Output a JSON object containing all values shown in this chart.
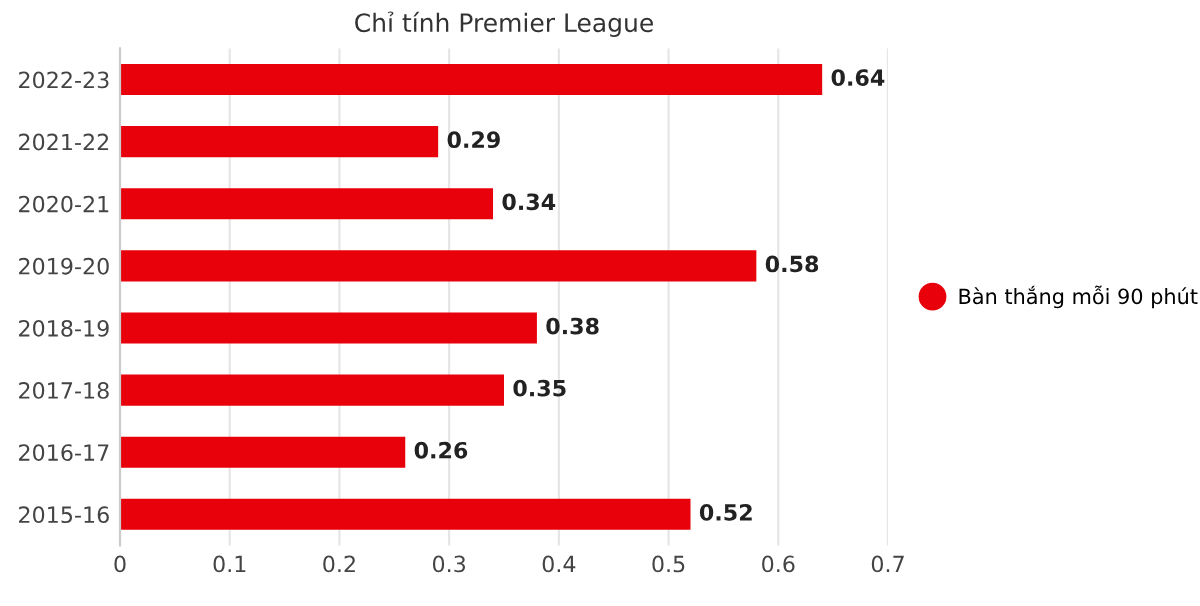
{
  "chart_data": {
    "type": "bar",
    "orientation": "horizontal",
    "title": "Chỉ tính Premier League",
    "categories": [
      "2022-23",
      "2021-22",
      "2020-21",
      "2019-20",
      "2018-19",
      "2017-18",
      "2016-17",
      "2015-16"
    ],
    "series": [
      {
        "name": "Bàn thắng mỗi 90 phút",
        "color": "#e8000b",
        "values": [
          0.64,
          0.29,
          0.34,
          0.58,
          0.38,
          0.35,
          0.26,
          0.52
        ]
      }
    ],
    "xlim": [
      0,
      0.7
    ],
    "xticks": [
      0,
      0.1,
      0.2,
      0.3,
      0.4,
      0.5,
      0.6,
      0.7
    ],
    "grid": "x",
    "legend": "right",
    "data_labels": true
  }
}
